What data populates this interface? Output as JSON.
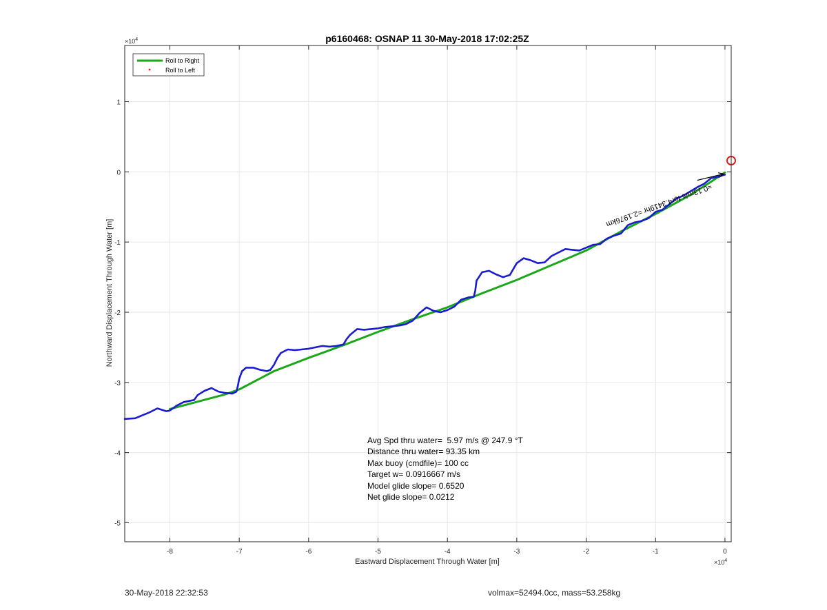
{
  "chart_data": {
    "type": "line",
    "title": "p6160468: OSNAP 11 30-May-2018 17:02:25Z",
    "xlabel": "Eastward Displacement Through Water [m]",
    "ylabel": "Northward Displacement Through Water [m]",
    "x_multiplier_label": "×10",
    "x_multiplier_exponent": "4",
    "y_multiplier_label": "×10",
    "y_multiplier_exponent": "4",
    "xlim": [
      -86500,
      900
    ],
    "ylim": [
      -52700,
      18000
    ],
    "xticks": [
      -80000,
      -70000,
      -60000,
      -50000,
      -40000,
      -30000,
      -20000,
      -10000,
      0
    ],
    "xtick_labels": [
      "-8",
      "-7",
      "-6",
      "-5",
      "-4",
      "-3",
      "-2",
      "-1",
      "0"
    ],
    "yticks": [
      -50000,
      -40000,
      -30000,
      -20000,
      -10000,
      0,
      10000
    ],
    "ytick_labels": [
      "-5",
      "-4",
      "-3",
      "-2",
      "-1",
      "0",
      "1"
    ],
    "grid": true,
    "legend_position": "top-left",
    "legend": [
      {
        "label": "Roll to Right",
        "color": "#1aa81a",
        "style": "line"
      },
      {
        "label": "Roll to Left",
        "color": "#e02020",
        "style": "dot"
      }
    ],
    "series": [
      {
        "name": "Roll to Right",
        "color": "#1aa81a",
        "x": [
          -80000,
          -72000,
          -70000,
          -65000,
          -60000,
          -55000,
          -50000,
          -45000,
          -40000,
          -35000,
          -30000,
          -25000,
          -20000,
          -15000,
          -10000,
          -5000,
          -2000,
          0
        ],
        "y": [
          -33800,
          -31700,
          -31000,
          -28400,
          -26500,
          -24700,
          -22800,
          -21000,
          -19300,
          -17300,
          -15400,
          -13300,
          -11200,
          -8500,
          -6000,
          -3300,
          -1400,
          -100
        ]
      },
      {
        "color": "#1a1ad0",
        "x": [
          -86500,
          -85000,
          -83000,
          -81800,
          -80500,
          -80000,
          -79000,
          -78000,
          -76500,
          -76000,
          -75000,
          -74000,
          -73000,
          -72000,
          -71000,
          -70400,
          -70200,
          -70000,
          -69600,
          -69000,
          -68000,
          -67000,
          -66000,
          -65500,
          -65000,
          -64500,
          -64000,
          -63000,
          -62000,
          -61000,
          -60000,
          -59000,
          -58000,
          -57000,
          -56000,
          -55000,
          -54500,
          -54000,
          -53000,
          -52000,
          -51000,
          -50000,
          -49000,
          -48000,
          -47000,
          -46000,
          -45000,
          -44000,
          -43000,
          -42000,
          -41000,
          -40000,
          -39000,
          -38000,
          -37000,
          -36200,
          -36000,
          -35800,
          -35000,
          -34000,
          -33000,
          -32000,
          -31000,
          -30000,
          -29000,
          -28000,
          -27000,
          -26000,
          -25000,
          -24000,
          -23000,
          -22000,
          -21000,
          -20000,
          -19000,
          -18000,
          -17000,
          -16000,
          -15000,
          -14000,
          -13000,
          -12000,
          -11000,
          -10000,
          -9000,
          -8000,
          -7000,
          -6000,
          -5000,
          -4000,
          -3000,
          -2000,
          -1000,
          0
        ],
        "y": [
          -35200,
          -35100,
          -34300,
          -33700,
          -34100,
          -34000,
          -33300,
          -32800,
          -32500,
          -31800,
          -31200,
          -30800,
          -31300,
          -31500,
          -31600,
          -31300,
          -30500,
          -29500,
          -28400,
          -27900,
          -27900,
          -28200,
          -28400,
          -28200,
          -27500,
          -26500,
          -25800,
          -25300,
          -25400,
          -25300,
          -25200,
          -25000,
          -24800,
          -24900,
          -24800,
          -24600,
          -23800,
          -23200,
          -22400,
          -22500,
          -22400,
          -22300,
          -22100,
          -22000,
          -21900,
          -21700,
          -21200,
          -20100,
          -19300,
          -19800,
          -20000,
          -19700,
          -19200,
          -18200,
          -17900,
          -17800,
          -17000,
          -15500,
          -14300,
          -14100,
          -14600,
          -15000,
          -14700,
          -13000,
          -12300,
          -12600,
          -13000,
          -12900,
          -12000,
          -11500,
          -11000,
          -11100,
          -11200,
          -10800,
          -10400,
          -10300,
          -9500,
          -9100,
          -8800,
          -7600,
          -7200,
          -7000,
          -6600,
          -5700,
          -5400,
          -4600,
          -3800,
          -3400,
          -2800,
          -2200,
          -1700,
          -900,
          -700,
          -400
        ]
      }
    ],
    "annotations": [
      {
        "text": "Avg Spd thru water=  5.97 m/s @ 247.9 °T"
      },
      {
        "text": "Distance thru water= 93.35 km"
      },
      {
        "text": "Max buoy (cmdfile)= 100 cc"
      },
      {
        "text": "Target w= 0.0916667 m/s"
      },
      {
        "text": "Model glide slope= 0.6520"
      },
      {
        "text": "Net glide slope= 0.0212"
      }
    ],
    "rotated_annotation": "≈0.13m/s for4.3419hr =2.1976km",
    "marker_circle": {
      "x": 900,
      "y": 1600,
      "color": "#d21f1f"
    },
    "arrow": {
      "x0": -4000,
      "y0": -1200,
      "x1": -200,
      "y1": -300
    }
  },
  "footer": {
    "left": "30-May-2018 22:32:53",
    "right": "volmax=52494.0cc, mass=53.258kg"
  }
}
